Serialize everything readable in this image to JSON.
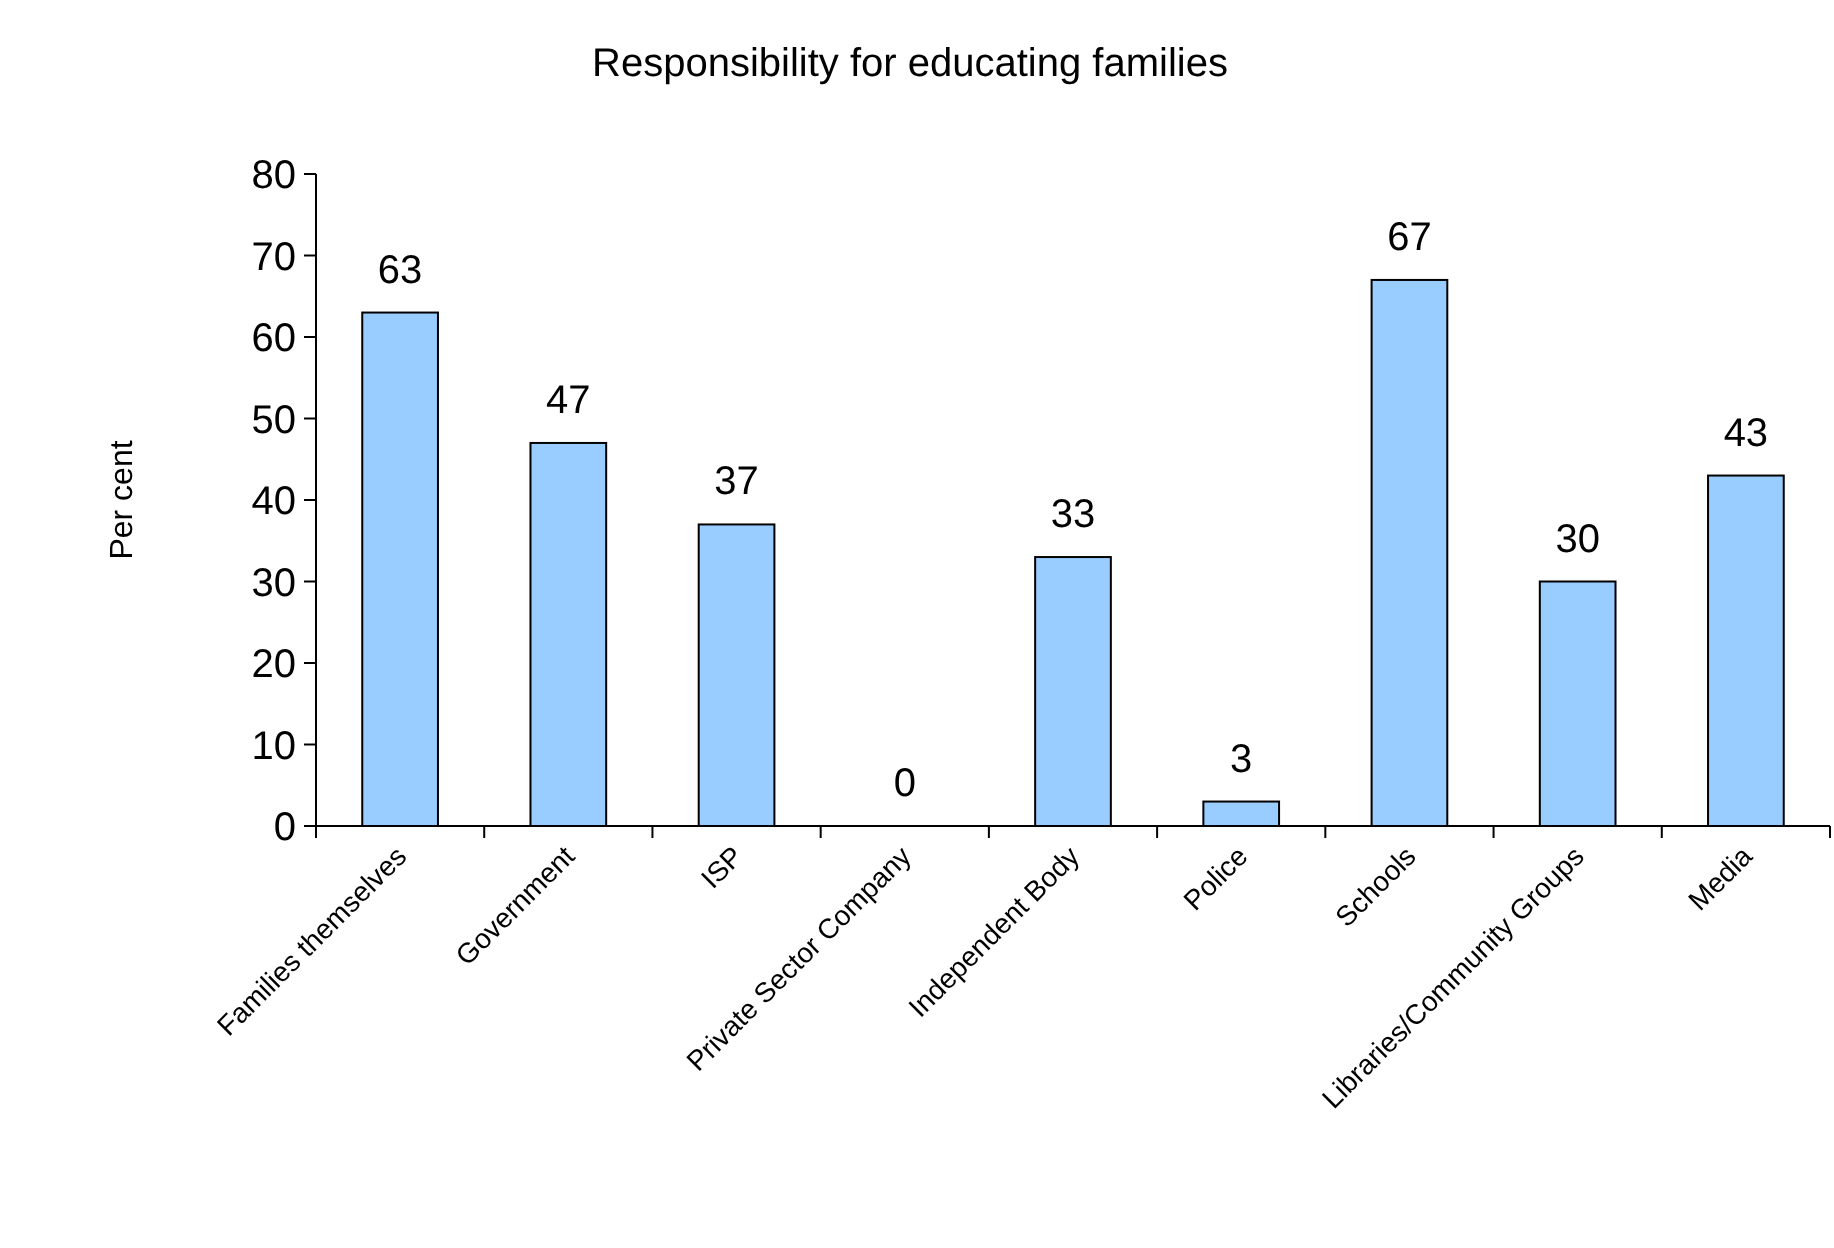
{
  "chart_data": {
    "type": "bar",
    "title": "Responsibility for educating families",
    "ylabel": "Per cent",
    "categories": [
      "Families themselves",
      "Government",
      "ISP",
      "Private Sector Company",
      "Independent Body",
      "Police",
      "Schools",
      "Libraries/Community Groups",
      "Media"
    ],
    "values": [
      63,
      47,
      37,
      0,
      33,
      3,
      67,
      30,
      43
    ],
    "color": "#99ccff",
    "ylim": [
      0,
      80
    ],
    "yticks": [
      0,
      10,
      20,
      30,
      40,
      50,
      60,
      70,
      80
    ],
    "data_labels": true,
    "grid": false
  }
}
